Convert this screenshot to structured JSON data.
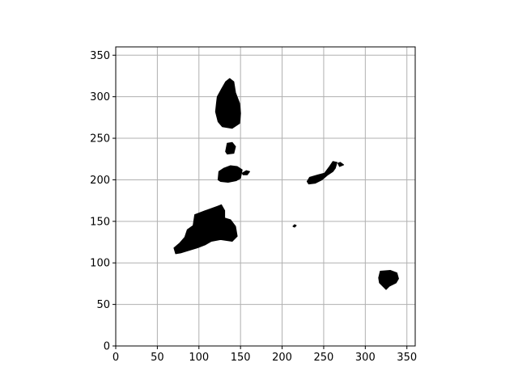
{
  "chart_data": {
    "type": "heatmap",
    "title": "",
    "xlabel": "",
    "ylabel": "",
    "xlim": [
      0,
      360
    ],
    "ylim": [
      0,
      360
    ],
    "x_ticks": [
      0,
      50,
      100,
      150,
      200,
      250,
      300,
      350
    ],
    "y_ticks": [
      0,
      50,
      100,
      150,
      200,
      250,
      300,
      350
    ],
    "x_tick_labels": [
      "0",
      "50",
      "100",
      "150",
      "200",
      "250",
      "300",
      "350"
    ],
    "y_tick_labels": [
      "0",
      "50",
      "100",
      "150",
      "200",
      "250",
      "300",
      "350"
    ],
    "grid": true,
    "colors": {
      "filled": "#000000",
      "background": "#ffffff",
      "grid": "#b0b0b0"
    },
    "regions": [
      {
        "name": "upper-blob",
        "outline": [
          [
            122,
            300
          ],
          [
            127,
            309
          ],
          [
            132,
            318
          ],
          [
            137,
            322
          ],
          [
            142,
            318
          ],
          [
            144,
            305
          ],
          [
            149,
            292
          ],
          [
            150,
            280
          ],
          [
            149,
            268
          ],
          [
            140,
            262
          ],
          [
            128,
            264
          ],
          [
            123,
            270
          ],
          [
            120,
            282
          ],
          [
            121,
            292
          ]
        ]
      },
      {
        "name": "small-blob",
        "outline": [
          [
            132,
            234
          ],
          [
            134,
            244
          ],
          [
            140,
            245
          ],
          [
            144,
            240
          ],
          [
            142,
            232
          ],
          [
            134,
            231
          ]
        ]
      },
      {
        "name": "middle-blob",
        "outline": [
          [
            123,
            200
          ],
          [
            124,
            210
          ],
          [
            130,
            214
          ],
          [
            138,
            217
          ],
          [
            146,
            216
          ],
          [
            152,
            212
          ],
          [
            150,
            202
          ],
          [
            145,
            199
          ],
          [
            135,
            197
          ],
          [
            126,
            198
          ]
        ]
      },
      {
        "name": "middle-blob-tail",
        "outline": [
          [
            152,
            208
          ],
          [
            157,
            211
          ],
          [
            161,
            210
          ],
          [
            158,
            206
          ],
          [
            153,
            206
          ]
        ]
      },
      {
        "name": "lower-left-blob",
        "outline": [
          [
            93,
            145
          ],
          [
            95,
            158
          ],
          [
            108,
            163
          ],
          [
            122,
            168
          ],
          [
            127,
            170
          ],
          [
            131,
            163
          ],
          [
            131,
            154
          ],
          [
            138,
            152
          ],
          [
            144,
            144
          ],
          [
            146,
            132
          ],
          [
            140,
            126
          ],
          [
            126,
            128
          ],
          [
            115,
            126
          ],
          [
            108,
            122
          ],
          [
            98,
            118
          ],
          [
            88,
            115
          ],
          [
            78,
            112
          ],
          [
            72,
            111
          ],
          [
            70,
            118
          ],
          [
            77,
            124
          ],
          [
            83,
            131
          ],
          [
            86,
            140
          ]
        ]
      },
      {
        "name": "right-blob",
        "outline": [
          [
            230,
            198
          ],
          [
            233,
            203
          ],
          [
            243,
            206
          ],
          [
            251,
            208
          ],
          [
            257,
            216
          ],
          [
            261,
            222
          ],
          [
            266,
            221
          ],
          [
            264,
            214
          ],
          [
            261,
            210
          ],
          [
            255,
            206
          ],
          [
            248,
            200
          ],
          [
            240,
            196
          ],
          [
            232,
            195
          ]
        ]
      },
      {
        "name": "right-blob-tail",
        "outline": [
          [
            267,
            220
          ],
          [
            270,
            221
          ],
          [
            274,
            218
          ],
          [
            269,
            216
          ]
        ]
      },
      {
        "name": "lower-right-blob",
        "outline": [
          [
            316,
            82
          ],
          [
            318,
            90
          ],
          [
            330,
            91
          ],
          [
            338,
            88
          ],
          [
            340,
            81
          ],
          [
            337,
            76
          ],
          [
            329,
            72
          ],
          [
            325,
            68
          ],
          [
            321,
            72
          ],
          [
            317,
            76
          ]
        ]
      },
      {
        "name": "speck",
        "outline": [
          [
            213,
            144
          ],
          [
            215,
            146
          ],
          [
            217,
            145
          ],
          [
            215,
            143
          ]
        ]
      }
    ]
  }
}
